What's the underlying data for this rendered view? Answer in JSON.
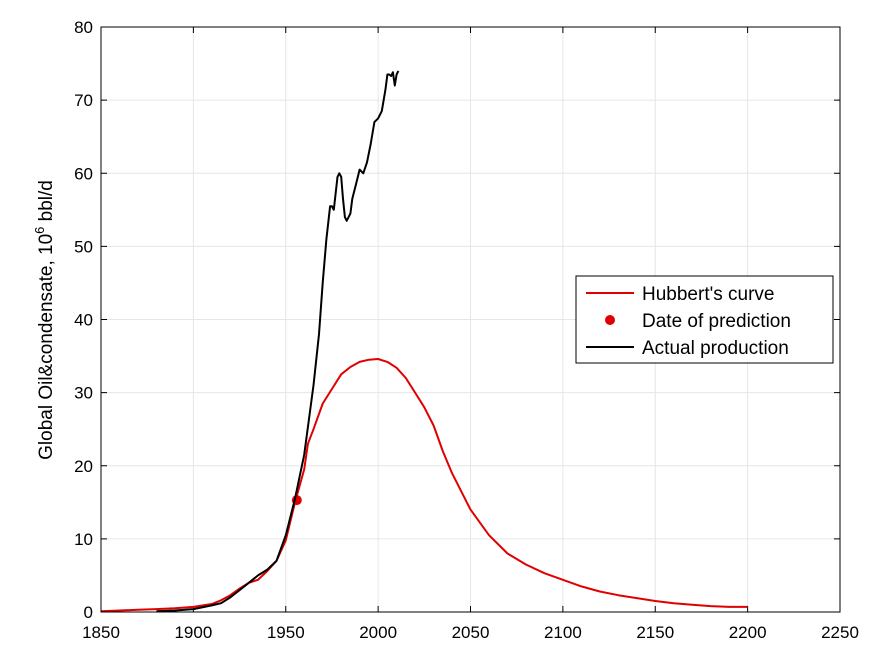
{
  "chart_data": {
    "type": "line",
    "title": "",
    "xlabel": "",
    "ylabel": "Global Oil&condensate, 10",
    "ylabel_sup": "6",
    "ylabel_tail": " bbl/d",
    "xlim": [
      1850,
      2250
    ],
    "ylim": [
      0,
      80
    ],
    "xticks": [
      "1850",
      "1900",
      "1950",
      "2000",
      "2050",
      "2100",
      "2150",
      "2200",
      "2250"
    ],
    "yticks": [
      "0",
      "10",
      "20",
      "30",
      "40",
      "50",
      "60",
      "70",
      "80"
    ],
    "grid": true,
    "legend_position": "right",
    "series": [
      {
        "name": "Hubbert's curve",
        "kind": "line",
        "color": "#e00000",
        "x": [
          1850,
          1860,
          1870,
          1880,
          1890,
          1900,
          1910,
          1915,
          1920,
          1925,
          1930,
          1935,
          1940,
          1945,
          1950,
          1955,
          1960,
          1962,
          1965,
          1970,
          1975,
          1980,
          1985,
          1990,
          1995,
          2000,
          2005,
          2010,
          2015,
          2020,
          2025,
          2030,
          2035,
          2040,
          2050,
          2060,
          2070,
          2080,
          2090,
          2100,
          2110,
          2120,
          2130,
          2140,
          2150,
          2160,
          2170,
          2180,
          2190,
          2200
        ],
        "y": [
          0.1,
          0.2,
          0.3,
          0.4,
          0.5,
          0.7,
          1.1,
          1.6,
          2.3,
          3.2,
          4.0,
          4.4,
          5.6,
          7.0,
          9.8,
          15.0,
          19.5,
          23.0,
          25.0,
          28.5,
          30.5,
          32.5,
          33.5,
          34.2,
          34.5,
          34.6,
          34.2,
          33.4,
          32.0,
          30.0,
          28.0,
          25.5,
          22.0,
          19.0,
          14.0,
          10.5,
          8.0,
          6.5,
          5.3,
          4.4,
          3.5,
          2.8,
          2.3,
          1.9,
          1.5,
          1.2,
          1.0,
          0.8,
          0.7,
          0.7
        ]
      },
      {
        "name": "Date of prediction",
        "kind": "marker",
        "color": "#e00000",
        "x": [
          1956
        ],
        "y": [
          15.3
        ]
      },
      {
        "name": "Actual production",
        "kind": "line",
        "color": "#000000",
        "x": [
          1880,
          1890,
          1900,
          1910,
          1915,
          1920,
          1925,
          1930,
          1935,
          1940,
          1945,
          1950,
          1955,
          1960,
          1965,
          1968,
          1970,
          1972,
          1974,
          1975,
          1976,
          1978,
          1979,
          1980,
          1981,
          1982,
          1983,
          1984,
          1985,
          1986,
          1988,
          1990,
          1992,
          1994,
          1996,
          1998,
          2000,
          2002,
          2004,
          2005,
          2006,
          2007,
          2008,
          2009,
          2010,
          2011
        ],
        "y": [
          0.1,
          0.2,
          0.4,
          0.9,
          1.2,
          2.0,
          3.0,
          4.0,
          5.0,
          5.8,
          7.0,
          10.5,
          15.5,
          21.5,
          31.0,
          38.0,
          45.0,
          51.0,
          55.5,
          55.5,
          55.0,
          59.5,
          60.0,
          59.5,
          56.5,
          54.0,
          53.5,
          54.0,
          54.5,
          56.5,
          58.5,
          60.5,
          60.0,
          61.5,
          64.0,
          67.0,
          67.5,
          68.5,
          71.5,
          73.5,
          73.5,
          73.3,
          73.8,
          72.0,
          73.5,
          74.0
        ]
      }
    ]
  }
}
